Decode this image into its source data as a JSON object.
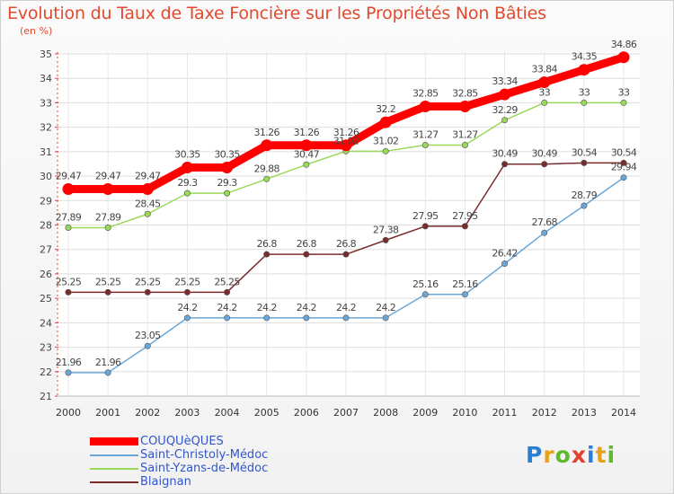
{
  "header": {
    "title": "Evolution du Taux de Taxe Foncière sur les Propriétés Non Bâties",
    "subtitle": "(en %)"
  },
  "chart_data": {
    "type": "line",
    "title": "Evolution du Taux de Taxe Foncière sur les Propriétés Non Bâties",
    "ylabel": "(en %)",
    "xlabel": "",
    "grid": true,
    "ylim": [
      21,
      35
    ],
    "yticks": [
      21,
      22,
      23,
      24,
      25,
      26,
      27,
      28,
      29,
      30,
      31,
      32,
      33,
      34,
      35
    ],
    "x": [
      "2000",
      "2001",
      "2002",
      "2003",
      "2004",
      "2005",
      "2006",
      "2007",
      "2008",
      "2009",
      "2010",
      "2011",
      "2012",
      "2013",
      "2014"
    ],
    "series": [
      {
        "name": "COUQUèQUES",
        "color": "#ff0000",
        "emphasis": true,
        "values": [
          29.47,
          29.47,
          29.47,
          30.35,
          30.35,
          31.26,
          31.26,
          31.26,
          32.2,
          32.85,
          32.85,
          33.34,
          33.84,
          34.35,
          34.86
        ],
        "labels": [
          "29.47",
          "29.47",
          "29.47",
          "30.35",
          "30.35",
          "31.26",
          "31.26",
          "31.26",
          "32.2",
          "32.85",
          "32.85",
          "33.34",
          "33.84",
          "34.35",
          "34.86"
        ]
      },
      {
        "name": "Saint-Christoly-Médoc",
        "color": "#6aa7d8",
        "emphasis": false,
        "values": [
          21.96,
          21.96,
          23.05,
          24.2,
          24.2,
          24.2,
          24.2,
          24.2,
          24.2,
          25.16,
          25.16,
          26.42,
          27.68,
          28.79,
          29.94
        ],
        "labels": [
          "21.96",
          "21.96",
          "23.05",
          "24.2",
          "24.2",
          "24.2",
          "24.2",
          "24.2",
          "24.2",
          "25.16",
          "25.16",
          "26.42",
          "27.68",
          "28.79",
          "29.94"
        ]
      },
      {
        "name": "Saint-Yzans-de-Médoc",
        "color": "#99d957",
        "emphasis": false,
        "values": [
          27.89,
          27.89,
          28.45,
          29.3,
          29.3,
          29.88,
          30.47,
          31.02,
          31.02,
          31.27,
          31.27,
          32.29,
          33,
          33,
          33
        ],
        "labels": [
          "27.89",
          "27.89",
          "28.45",
          "29.3",
          "29.3",
          "29.88",
          "30.47",
          "31.02",
          "31.02",
          "31.27",
          "31.27",
          "32.29",
          "33",
          "33",
          "33"
        ]
      },
      {
        "name": "Blaignan",
        "color": "#7a2c2c",
        "emphasis": false,
        "values": [
          25.25,
          25.25,
          25.25,
          25.25,
          25.25,
          26.8,
          26.8,
          26.8,
          27.38,
          27.95,
          27.95,
          30.49,
          30.49,
          30.54,
          30.54
        ],
        "labels": [
          "25.25",
          "25.25",
          "25.25",
          "25.25",
          "25.25",
          "26.8",
          "26.8",
          "26.8",
          "27.38",
          "27.95",
          "27.95",
          "30.49",
          "30.49",
          "30.54",
          "30.54"
        ]
      }
    ],
    "legend": "bottom-left"
  },
  "logo": {
    "letters": [
      "P",
      "r",
      "o",
      "x",
      "i",
      "t",
      "i"
    ],
    "colors": [
      "#2a7fd4",
      "#e6a21a",
      "#5fb82e",
      "#e0402e",
      "#2a7fd4",
      "#e6a21a",
      "#5fb82e"
    ]
  }
}
